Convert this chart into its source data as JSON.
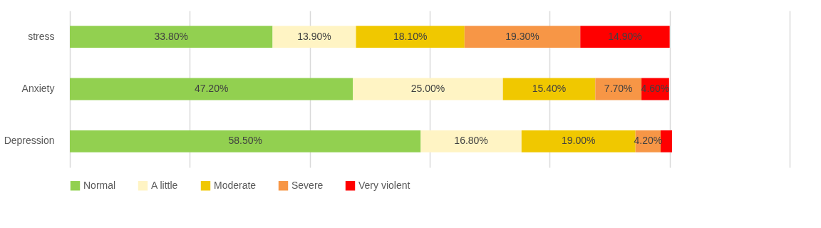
{
  "chart_data": {
    "type": "bar",
    "orientation": "horizontal",
    "stacked": true,
    "categories": [
      "stress",
      "Anxiety",
      "Depression"
    ],
    "series": [
      {
        "name": "Normal",
        "color": "#92d050",
        "values": [
          33.8,
          47.2,
          58.5
        ],
        "value_labels": [
          "33.80%",
          "47.20%",
          "58.50%"
        ]
      },
      {
        "name": "A little",
        "color": "#fff4c4",
        "values": [
          13.9,
          25.0,
          16.8
        ],
        "value_labels": [
          "13.90%",
          "25.00%",
          "16.80%"
        ]
      },
      {
        "name": "Moderate",
        "color": "#f0c800",
        "values": [
          18.1,
          15.4,
          19.0
        ],
        "value_labels": [
          "18.10%",
          "15.40%",
          "19.00%"
        ]
      },
      {
        "name": "Severe",
        "color": "#f79646",
        "values": [
          19.3,
          7.7,
          4.2
        ],
        "value_labels": [
          "19.30%",
          "7.70%",
          "4.20%"
        ]
      },
      {
        "name": "Very violent",
        "color": "#ff0000",
        "values": [
          14.9,
          4.6,
          1.9
        ],
        "value_labels": [
          "14.90%",
          "4.60%",
          null
        ]
      }
    ],
    "xlim": [
      0,
      120
    ],
    "xticks": [
      {
        "value": 0,
        "label": null
      },
      {
        "value": 20,
        "label": null
      },
      {
        "value": 40,
        "label": null
      },
      {
        "value": 60,
        "label": null
      },
      {
        "value": 80,
        "label": null
      },
      {
        "value": 100,
        "label": null
      },
      {
        "value": 120,
        "label": null
      }
    ],
    "grid": "x",
    "legend": "bottom",
    "tick_labels": "y"
  }
}
